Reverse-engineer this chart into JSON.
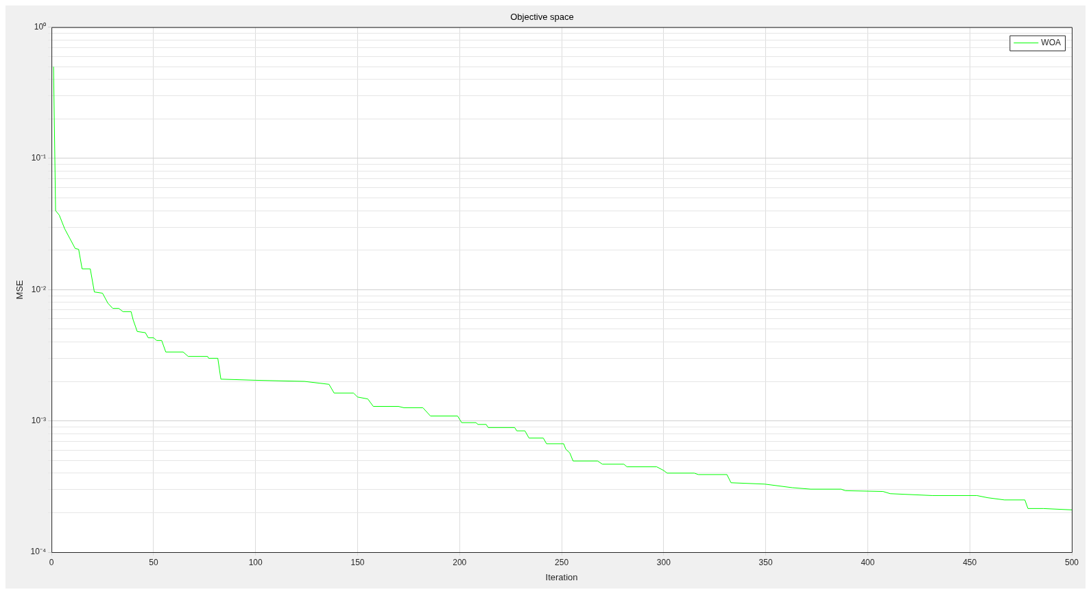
{
  "chart_data": {
    "type": "line",
    "title": "Objective space",
    "xlabel": "Iteration",
    "ylabel": "MSE",
    "log": "y",
    "grid": true,
    "legend": "top right",
    "line_style": "solid",
    "marker": "none",
    "xlim": [
      0,
      500
    ],
    "xticks": [
      0,
      50,
      100,
      150,
      200,
      250,
      300,
      350,
      400,
      450,
      500
    ],
    "ylim": [
      0.0001,
      1
    ],
    "yticks": [
      {
        "value": 0.0001,
        "label": "10⁻⁴"
      },
      {
        "value": 0.0002,
        "label": null
      },
      {
        "value": 0.0003,
        "label": null
      },
      {
        "value": 0.0004,
        "label": null
      },
      {
        "value": 0.0005,
        "label": null
      },
      {
        "value": 0.0006,
        "label": null
      },
      {
        "value": 0.0007,
        "label": null
      },
      {
        "value": 0.0008,
        "label": null
      },
      {
        "value": 0.0009,
        "label": null
      },
      {
        "value": 0.001,
        "label": "10⁻³"
      },
      {
        "value": 0.002,
        "label": null
      },
      {
        "value": 0.003,
        "label": null
      },
      {
        "value": 0.004,
        "label": null
      },
      {
        "value": 0.005,
        "label": null
      },
      {
        "value": 0.006,
        "label": null
      },
      {
        "value": 0.007,
        "label": null
      },
      {
        "value": 0.008,
        "label": null
      },
      {
        "value": 0.009,
        "label": null
      },
      {
        "value": 0.01,
        "label": "10⁻²"
      },
      {
        "value": 0.02,
        "label": null
      },
      {
        "value": 0.03,
        "label": null
      },
      {
        "value": 0.04,
        "label": null
      },
      {
        "value": 0.05,
        "label": null
      },
      {
        "value": 0.06,
        "label": null
      },
      {
        "value": 0.07,
        "label": null
      },
      {
        "value": 0.08,
        "label": null
      },
      {
        "value": 0.09,
        "label": null
      },
      {
        "value": 0.1,
        "label": "10⁻¹"
      },
      {
        "value": 0.2,
        "label": null
      },
      {
        "value": 0.3,
        "label": null
      },
      {
        "value": 0.4,
        "label": null
      },
      {
        "value": 0.5,
        "label": null
      },
      {
        "value": 0.6,
        "label": null
      },
      {
        "value": 0.7,
        "label": null
      },
      {
        "value": 0.8,
        "label": null
      },
      {
        "value": 0.9,
        "label": null
      },
      {
        "value": 1,
        "label": "10⁰"
      }
    ],
    "series": [
      {
        "name": "WOA",
        "color": "#00ff00",
        "x": [
          1,
          2,
          3.8,
          6.5,
          8.9,
          11.6,
          13.3,
          15,
          19,
          21,
          25,
          27.6,
          30,
          33,
          35,
          39,
          40,
          42,
          46,
          47.4,
          50,
          51.5,
          54,
          56,
          64.5,
          67,
          76.5,
          77,
          81.5,
          83,
          100,
          124,
          136,
          138.5,
          148,
          150,
          155,
          157.7,
          170,
          172.7,
          182,
          185.7,
          199,
          201,
          208,
          209,
          213,
          214,
          227,
          228,
          232,
          234,
          241,
          242.6,
          251,
          252,
          254,
          255.6,
          267.6,
          270,
          280.5,
          282,
          296.6,
          300,
          301.7,
          315,
          317,
          331,
          333,
          349.5,
          363,
          372,
          387,
          389,
          407.5,
          411,
          431.5,
          453.5,
          458.7,
          467,
          477,
          478.5,
          486,
          500
        ],
        "values": [
          0.5,
          0.04,
          0.037,
          0.029,
          0.0247,
          0.0206,
          0.0203,
          0.0144,
          0.0144,
          0.0096,
          0.0094,
          0.0079,
          0.0072,
          0.0072,
          0.0068,
          0.0068,
          0.0059,
          0.0048,
          0.0047,
          0.0043,
          0.0043,
          0.0041,
          0.0041,
          0.00335,
          0.00335,
          0.0031,
          0.0031,
          0.003,
          0.003,
          0.00208,
          0.00204,
          0.002,
          0.0019,
          0.00163,
          0.00163,
          0.00152,
          0.00147,
          0.00129,
          0.00129,
          0.00126,
          0.00126,
          0.00109,
          0.00109,
          0.00097,
          0.00097,
          0.00094,
          0.00094,
          0.00089,
          0.00089,
          0.00084,
          0.00084,
          0.00074,
          0.00074,
          0.00067,
          0.00067,
          0.00061,
          0.00057,
          0.000495,
          0.000495,
          0.000468,
          0.000468,
          0.000447,
          0.000447,
          0.000419,
          0.0004,
          0.0004,
          0.00039,
          0.00039,
          0.000338,
          0.00033,
          0.00031,
          0.000302,
          0.000302,
          0.000294,
          0.00029,
          0.000279,
          0.00027,
          0.00027,
          0.00026,
          0.00025,
          0.00025,
          0.000215,
          0.000215,
          0.00021
        ]
      }
    ]
  }
}
